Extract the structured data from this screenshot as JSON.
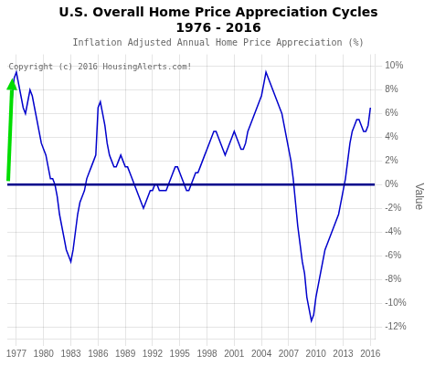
{
  "chart_data": {
    "type": "line",
    "title": "U.S. Overall Home Price Appreciation Cycles\n1976 - 2016",
    "subtitle": "Inflation Adjusted Annual Home Price Appreciation (%)",
    "ylabel": "Value",
    "color": "#0000cc",
    "x": [
      1976.0,
      1976.25,
      1976.5,
      1976.75,
      1977.0,
      1977.25,
      1977.5,
      1977.75,
      1978.0,
      1978.25,
      1978.5,
      1978.75,
      1979.0,
      1979.25,
      1979.5,
      1979.75,
      1980.0,
      1980.25,
      1980.5,
      1980.75,
      1981.0,
      1981.25,
      1981.5,
      1981.75,
      1982.0,
      1982.25,
      1982.5,
      1982.75,
      1983.0,
      1983.25,
      1983.5,
      1983.75,
      1984.0,
      1984.25,
      1984.5,
      1984.75,
      1985.0,
      1985.25,
      1985.5,
      1985.75,
      1986.0,
      1986.25,
      1986.5,
      1986.75,
      1987.0,
      1987.25,
      1987.5,
      1987.75,
      1988.0,
      1988.25,
      1988.5,
      1988.75,
      1989.0,
      1989.25,
      1989.5,
      1989.75,
      1990.0,
      1990.25,
      1990.5,
      1990.75,
      1991.0,
      1991.25,
      1991.5,
      1991.75,
      1992.0,
      1992.25,
      1992.5,
      1992.75,
      1993.0,
      1993.25,
      1993.5,
      1993.75,
      1994.0,
      1994.25,
      1994.5,
      1994.75,
      1995.0,
      1995.25,
      1995.5,
      1995.75,
      1996.0,
      1996.25,
      1996.5,
      1996.75,
      1997.0,
      1997.25,
      1997.5,
      1997.75,
      1998.0,
      1998.25,
      1998.5,
      1998.75,
      1999.0,
      1999.25,
      1999.5,
      1999.75,
      2000.0,
      2000.25,
      2000.5,
      2000.75,
      2001.0,
      2001.25,
      2001.5,
      2001.75,
      2002.0,
      2002.25,
      2002.5,
      2002.75,
      2003.0,
      2003.25,
      2003.5,
      2003.75,
      2004.0,
      2004.25,
      2004.5,
      2004.75,
      2005.0,
      2005.25,
      2005.5,
      2005.75,
      2006.0,
      2006.25,
      2006.5,
      2006.75,
      2007.0,
      2007.25,
      2007.5,
      2007.75,
      2008.0,
      2008.25,
      2008.5,
      2008.75,
      2009.0,
      2009.25,
      2009.5,
      2009.75,
      2010.0,
      2010.25,
      2010.5,
      2010.75,
      2011.0,
      2011.25,
      2011.5,
      2011.75,
      2012.0,
      2012.25,
      2012.5,
      2012.75,
      2013.0,
      2013.25,
      2013.5,
      2013.75,
      2014.0,
      2014.25,
      2014.5,
      2014.75,
      2015.0,
      2015.25,
      2015.5,
      2015.75,
      2016.0
    ],
    "values": [
      0.5,
      3.5,
      7.0,
      9.0,
      9.5,
      8.5,
      7.5,
      6.5,
      6.0,
      7.0,
      8.0,
      7.5,
      6.5,
      5.5,
      4.5,
      3.5,
      3.0,
      2.5,
      1.5,
      0.5,
      0.5,
      0.0,
      -1.0,
      -2.5,
      -3.5,
      -4.5,
      -5.5,
      -6.0,
      -6.5,
      -5.5,
      -4.0,
      -2.5,
      -1.5,
      -1.0,
      -0.5,
      0.5,
      1.0,
      1.5,
      2.0,
      2.5,
      6.5,
      7.0,
      6.0,
      5.0,
      3.5,
      2.5,
      2.0,
      1.5,
      1.5,
      2.0,
      2.5,
      2.0,
      1.5,
      1.5,
      1.0,
      0.5,
      0.0,
      -0.5,
      -1.0,
      -1.5,
      -2.0,
      -1.5,
      -1.0,
      -0.5,
      -0.5,
      0.0,
      0.0,
      -0.5,
      -0.5,
      -0.5,
      -0.5,
      0.0,
      0.5,
      1.0,
      1.5,
      1.5,
      1.0,
      0.5,
      0.0,
      -0.5,
      -0.5,
      0.0,
      0.5,
      1.0,
      1.0,
      1.5,
      2.0,
      2.5,
      3.0,
      3.5,
      4.0,
      4.5,
      4.5,
      4.0,
      3.5,
      3.0,
      2.5,
      3.0,
      3.5,
      4.0,
      4.5,
      4.0,
      3.5,
      3.0,
      3.0,
      3.5,
      4.5,
      5.0,
      5.5,
      6.0,
      6.5,
      7.0,
      7.5,
      8.5,
      9.5,
      9.0,
      8.5,
      8.0,
      7.5,
      7.0,
      6.5,
      6.0,
      5.0,
      4.0,
      3.0,
      2.0,
      0.5,
      -1.5,
      -3.5,
      -5.0,
      -6.5,
      -7.5,
      -9.5,
      -10.5,
      -11.5,
      -11.0,
      -9.5,
      -8.5,
      -7.5,
      -6.5,
      -5.5,
      -5.0,
      -4.5,
      -4.0,
      -3.5,
      -3.0,
      -2.5,
      -1.5,
      -0.5,
      0.5,
      2.0,
      3.5,
      4.5,
      5.0,
      5.5,
      5.5,
      5.0,
      4.5,
      4.5,
      5.0,
      6.5
    ],
    "xlim": [
      1976.0,
      2016.5
    ],
    "ylim": [
      -13.0,
      11.0
    ],
    "xticks": [
      1977,
      1980,
      1983,
      1986,
      1989,
      1992,
      1995,
      1998,
      2001,
      2004,
      2007,
      2010,
      2013,
      2016
    ],
    "yticks": [
      {
        "value": -12,
        "label": "-12%"
      },
      {
        "value": -10,
        "label": "-10%"
      },
      {
        "value": -8,
        "label": "-8%"
      },
      {
        "value": -6,
        "label": "-6%"
      },
      {
        "value": -4,
        "label": "-4%"
      },
      {
        "value": -2,
        "label": "-2%"
      },
      {
        "value": 0,
        "label": "0%"
      },
      {
        "value": 2,
        "label": "2%"
      },
      {
        "value": 4,
        "label": "4%"
      },
      {
        "value": 6,
        "label": "6%"
      },
      {
        "value": 8,
        "label": "8%"
      },
      {
        "value": 10,
        "label": "10%"
      }
    ],
    "grid": true,
    "annotations": [
      {
        "type": "hline",
        "y": 0,
        "color": "#00008B"
      },
      {
        "type": "text",
        "text": "Copyright (c) 2016 HousingAlerts.com!",
        "x": 1976.15,
        "y": 10.3
      },
      {
        "type": "arrow",
        "x": 1976.1,
        "y": 0.3,
        "x_end": 1976.55,
        "y_end": 9.0,
        "color": "#00dd00"
      }
    ]
  }
}
